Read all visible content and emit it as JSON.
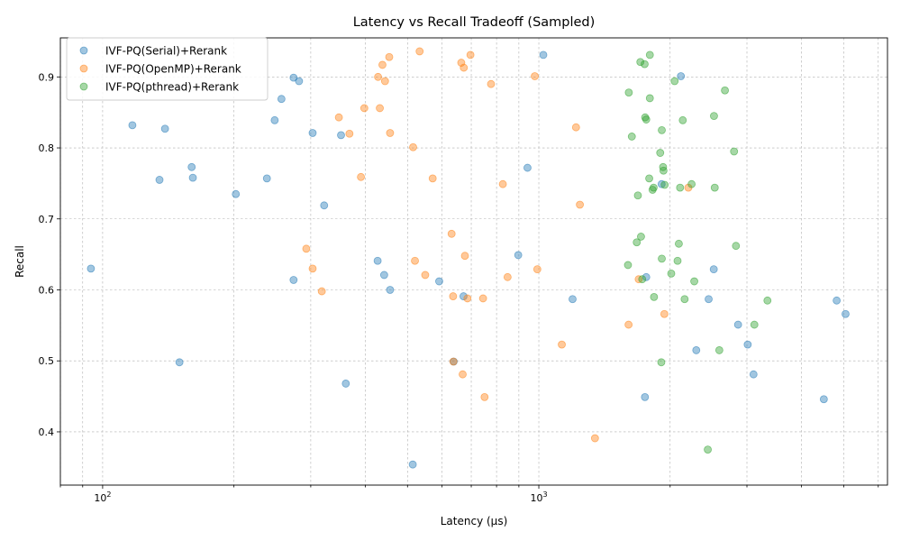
{
  "chart_data": {
    "type": "scatter",
    "title": "Latency vs Recall Tradeoff (Sampled)",
    "xlabel": "Latency (μs)",
    "ylabel": "Recall",
    "xscale": "log",
    "xlim": [
      80,
      6300
    ],
    "ylim": [
      0.325,
      0.955
    ],
    "x_ticks": [
      {
        "value": 100,
        "base": "10",
        "exp": "2"
      },
      {
        "value": 1000,
        "base": "10",
        "exp": "3"
      }
    ],
    "y_ticks": [
      {
        "value": 0.4,
        "label": "0.4"
      },
      {
        "value": 0.5,
        "label": "0.5"
      },
      {
        "value": 0.6,
        "label": "0.6"
      },
      {
        "value": 0.7,
        "label": "0.7"
      },
      {
        "value": 0.8,
        "label": "0.8"
      },
      {
        "value": 0.9,
        "label": "0.9"
      }
    ],
    "grid": true,
    "legend_position": "top-left",
    "series": [
      {
        "name": "IVF-PQ(Serial)+Rerank",
        "color": "#1f77b4",
        "points": [
          [
            94,
            0.63
          ],
          [
            117,
            0.832
          ],
          [
            135,
            0.755
          ],
          [
            139,
            0.827
          ],
          [
            150,
            0.498
          ],
          [
            160,
            0.773
          ],
          [
            161,
            0.758
          ],
          [
            202,
            0.735
          ],
          [
            238,
            0.757
          ],
          [
            248,
            0.839
          ],
          [
            257,
            0.869
          ],
          [
            274,
            0.899
          ],
          [
            282,
            0.894
          ],
          [
            274,
            0.614
          ],
          [
            303,
            0.821
          ],
          [
            322,
            0.719
          ],
          [
            352,
            0.818
          ],
          [
            361,
            0.468
          ],
          [
            427,
            0.641
          ],
          [
            442,
            0.621
          ],
          [
            456,
            0.6
          ],
          [
            514,
            0.354
          ],
          [
            591,
            0.612
          ],
          [
            638,
            0.499
          ],
          [
            672,
            0.591
          ],
          [
            897,
            0.649
          ],
          [
            942,
            0.772
          ],
          [
            1024,
            0.931
          ],
          [
            1195,
            0.587
          ],
          [
            1751,
            0.449
          ],
          [
            1763,
            0.618
          ],
          [
            1912,
            0.749
          ],
          [
            2117,
            0.901
          ],
          [
            2296,
            0.515
          ],
          [
            2451,
            0.587
          ],
          [
            2518,
            0.629
          ],
          [
            2863,
            0.551
          ],
          [
            3012,
            0.523
          ],
          [
            3106,
            0.481
          ],
          [
            4502,
            0.446
          ],
          [
            4818,
            0.585
          ],
          [
            5049,
            0.566
          ]
        ]
      },
      {
        "name": "IVF-PQ(OpenMP)+Rerank",
        "color": "#ff7f0e",
        "points": [
          [
            293,
            0.658
          ],
          [
            303,
            0.63
          ],
          [
            318,
            0.598
          ],
          [
            348,
            0.843
          ],
          [
            368,
            0.82
          ],
          [
            391,
            0.759
          ],
          [
            398,
            0.856
          ],
          [
            428,
            0.9
          ],
          [
            432,
            0.856
          ],
          [
            438,
            0.917
          ],
          [
            444,
            0.894
          ],
          [
            454,
            0.928
          ],
          [
            456,
            0.821
          ],
          [
            515,
            0.801
          ],
          [
            520,
            0.641
          ],
          [
            533,
            0.936
          ],
          [
            549,
            0.621
          ],
          [
            571,
            0.757
          ],
          [
            631,
            0.679
          ],
          [
            636,
            0.591
          ],
          [
            637,
            0.499
          ],
          [
            664,
            0.92
          ],
          [
            669,
            0.481
          ],
          [
            673,
            0.913
          ],
          [
            677,
            0.648
          ],
          [
            686,
            0.588
          ],
          [
            697,
            0.931
          ],
          [
            745,
            0.588
          ],
          [
            751,
            0.449
          ],
          [
            777,
            0.89
          ],
          [
            827,
            0.749
          ],
          [
            848,
            0.618
          ],
          [
            979,
            0.901
          ],
          [
            992,
            0.629
          ],
          [
            1129,
            0.523
          ],
          [
            1217,
            0.829
          ],
          [
            1242,
            0.72
          ],
          [
            1345,
            0.391
          ],
          [
            1606,
            0.551
          ],
          [
            1694,
            0.615
          ],
          [
            1940,
            0.566
          ],
          [
            2202,
            0.744
          ]
        ]
      },
      {
        "name": "IVF-PQ(pthread)+Rerank",
        "color": "#2ca02c",
        "points": [
          [
            1601,
            0.635
          ],
          [
            1608,
            0.878
          ],
          [
            1634,
            0.816
          ],
          [
            1677,
            0.667
          ],
          [
            1687,
            0.733
          ],
          [
            1709,
            0.921
          ],
          [
            1715,
            0.675
          ],
          [
            1726,
            0.615
          ],
          [
            1748,
            0.918
          ],
          [
            1753,
            0.843
          ],
          [
            1763,
            0.84
          ],
          [
            1791,
            0.757
          ],
          [
            1797,
            0.87
          ],
          [
            1797,
            0.931
          ],
          [
            1823,
            0.741
          ],
          [
            1833,
            0.744
          ],
          [
            1837,
            0.59
          ],
          [
            1898,
            0.793
          ],
          [
            1909,
            0.498
          ],
          [
            1914,
            0.644
          ],
          [
            1914,
            0.825
          ],
          [
            1927,
            0.773
          ],
          [
            1931,
            0.768
          ],
          [
            1943,
            0.748
          ],
          [
            2012,
            0.623
          ],
          [
            2048,
            0.894
          ],
          [
            2080,
            0.641
          ],
          [
            2094,
            0.665
          ],
          [
            2108,
            0.744
          ],
          [
            2138,
            0.839
          ],
          [
            2159,
            0.587
          ],
          [
            2240,
            0.749
          ],
          [
            2272,
            0.612
          ],
          [
            2440,
            0.375
          ],
          [
            2521,
            0.845
          ],
          [
            2531,
            0.744
          ],
          [
            2593,
            0.515
          ],
          [
            2671,
            0.881
          ],
          [
            2803,
            0.795
          ],
          [
            2831,
            0.662
          ],
          [
            3120,
            0.551
          ],
          [
            3343,
            0.585
          ]
        ]
      }
    ]
  }
}
